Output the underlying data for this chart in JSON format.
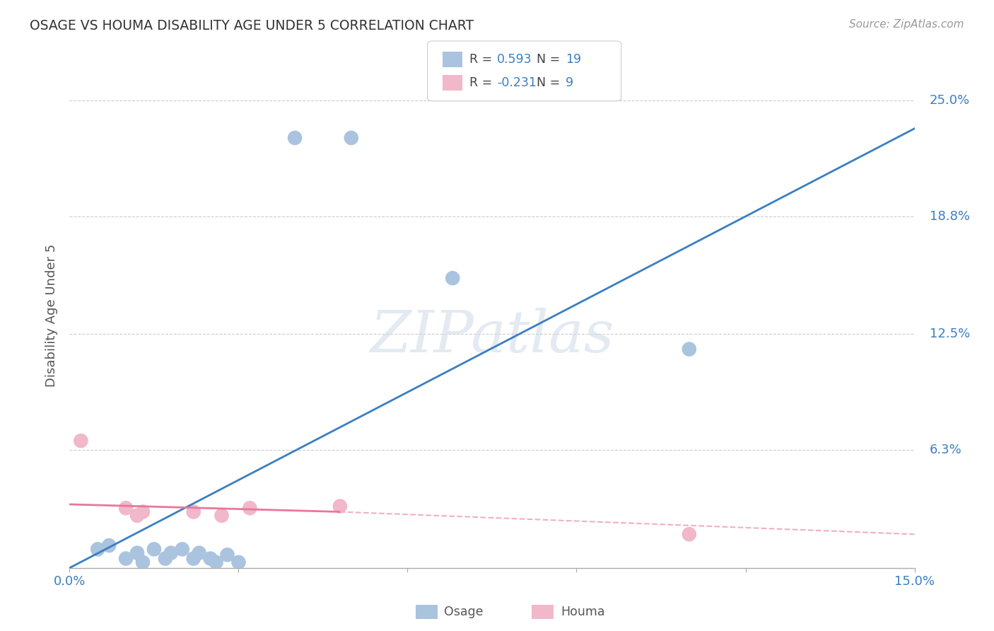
{
  "title": "OSAGE VS HOUMA DISABILITY AGE UNDER 5 CORRELATION CHART",
  "source": "Source: ZipAtlas.com",
  "ylabel": "Disability Age Under 5",
  "xlim": [
    0.0,
    0.15
  ],
  "ylim": [
    0.0,
    0.27
  ],
  "xticks": [
    0.0,
    0.03,
    0.06,
    0.09,
    0.12,
    0.15
  ],
  "xticklabels": [
    "0.0%",
    "",
    "",
    "",
    "",
    "15.0%"
  ],
  "ytick_positions": [
    0.0,
    0.063,
    0.125,
    0.188,
    0.25
  ],
  "ytick_labels": [
    "",
    "6.3%",
    "12.5%",
    "18.8%",
    "25.0%"
  ],
  "osage_R": 0.593,
  "osage_N": 19,
  "houma_R": -0.231,
  "houma_N": 9,
  "osage_color": "#aac4e0",
  "houma_color": "#f0b8c8",
  "osage_line_color": "#3a7fc1",
  "houma_line_solid_color": "#e8789a",
  "houma_line_dashed_color": "#f0afc4",
  "watermark": "ZIPatlas",
  "osage_points": [
    [
      0.005,
      0.01
    ],
    [
      0.007,
      0.012
    ],
    [
      0.01,
      0.005
    ],
    [
      0.012,
      0.008
    ],
    [
      0.013,
      0.003
    ],
    [
      0.015,
      0.01
    ],
    [
      0.017,
      0.005
    ],
    [
      0.018,
      0.008
    ],
    [
      0.02,
      0.01
    ],
    [
      0.022,
      0.005
    ],
    [
      0.023,
      0.008
    ],
    [
      0.025,
      0.005
    ],
    [
      0.026,
      0.003
    ],
    [
      0.028,
      0.007
    ],
    [
      0.03,
      0.003
    ],
    [
      0.04,
      0.23
    ],
    [
      0.05,
      0.23
    ],
    [
      0.068,
      0.155
    ],
    [
      0.11,
      0.117
    ]
  ],
  "houma_points": [
    [
      0.002,
      0.068
    ],
    [
      0.01,
      0.032
    ],
    [
      0.012,
      0.028
    ],
    [
      0.013,
      0.03
    ],
    [
      0.022,
      0.03
    ],
    [
      0.027,
      0.028
    ],
    [
      0.032,
      0.032
    ],
    [
      0.048,
      0.033
    ],
    [
      0.11,
      0.018
    ]
  ],
  "osage_line": [
    [
      0.0,
      0.0
    ],
    [
      0.15,
      0.235
    ]
  ],
  "houma_line_solid": [
    [
      0.0,
      0.034
    ],
    [
      0.048,
      0.03
    ]
  ],
  "houma_line_dashed": [
    [
      0.048,
      0.03
    ],
    [
      0.15,
      0.018
    ]
  ],
  "background_color": "#ffffff",
  "grid_color": "#cccccc"
}
